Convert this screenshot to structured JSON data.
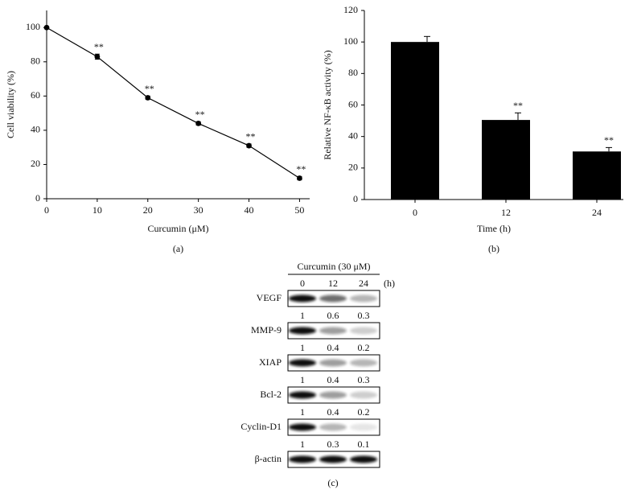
{
  "chart_data": [
    {
      "type": "line",
      "x_label": "Curcumin (μM)",
      "y_label": "Cell viability (%)",
      "panel_label": "(a)",
      "x": [
        0,
        10,
        20,
        30,
        40,
        50
      ],
      "values": [
        100,
        83,
        59,
        44,
        31,
        12
      ],
      "errors": [
        0,
        1.5,
        1,
        1,
        1,
        1
      ],
      "annotations": [
        null,
        "**",
        "**",
        "**",
        "**",
        "**"
      ],
      "color": "#000000",
      "xlim": [
        0,
        52
      ],
      "xticks": [
        0,
        10,
        20,
        30,
        40,
        50
      ],
      "ylim": [
        0,
        110
      ],
      "yticks": [
        0,
        20,
        40,
        60,
        80,
        100
      ]
    },
    {
      "type": "bar",
      "x_label": "Time (h)",
      "y_label": "Relative NF-κB activity (%)",
      "panel_label": "(b)",
      "categories": [
        "0",
        "12",
        "24"
      ],
      "values": [
        100,
        50.5,
        30.5
      ],
      "errors": [
        3.5,
        4.5,
        2.5
      ],
      "annotations": [
        null,
        "**",
        "**"
      ],
      "color": "#000000",
      "ylim": [
        0,
        120
      ],
      "yticks": [
        0,
        20,
        40,
        60,
        80,
        100,
        120
      ]
    }
  ],
  "blot": {
    "header": "Curcumin (30 μM)",
    "lanes": [
      "0",
      "12",
      "24"
    ],
    "unit": "(h)",
    "panel_label": "(c)",
    "rows": [
      {
        "name": "VEGF",
        "quant": [
          1,
          0.6,
          0.3
        ]
      },
      {
        "name": "MMP-9",
        "quant": [
          1,
          0.4,
          0.2
        ]
      },
      {
        "name": "XIAP",
        "quant": [
          1,
          0.4,
          0.3
        ]
      },
      {
        "name": "Bcl-2",
        "quant": [
          1,
          0.4,
          0.2
        ]
      },
      {
        "name": "Cyclin-D1",
        "quant": [
          1,
          0.3,
          0.1
        ]
      },
      {
        "name": "β-actin"
      }
    ]
  }
}
